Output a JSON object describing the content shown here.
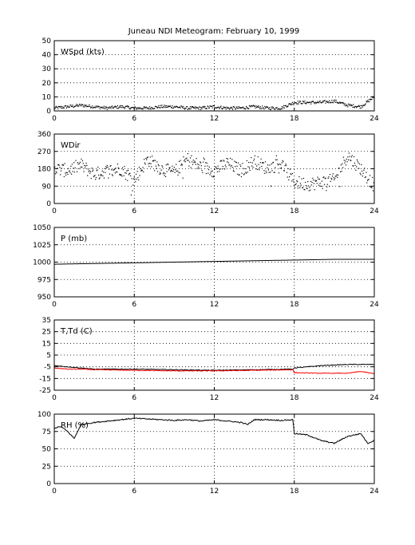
{
  "figure": {
    "title": "Juneau NDI Meteogram:  February 10, 1999"
  },
  "chart_data": [
    {
      "type": "scatter",
      "label": "WSpd (kts)",
      "ylim": [
        0,
        50
      ],
      "yticks": [
        0,
        10,
        20,
        30,
        40,
        50
      ],
      "xlim": [
        0,
        24
      ],
      "xticks": [
        0,
        6,
        12,
        18,
        24
      ],
      "grid": true,
      "series": [
        {
          "x": [
            0,
            1,
            2,
            3,
            4,
            5,
            6,
            7,
            8,
            9,
            10,
            11,
            12,
            13,
            14,
            15,
            16,
            17,
            18,
            19,
            20,
            21,
            22,
            23,
            24
          ],
          "y": [
            2,
            3,
            4,
            3,
            2,
            3,
            2,
            2,
            3,
            3,
            2,
            2,
            3,
            2,
            2,
            3,
            2,
            2,
            6,
            6,
            6,
            7,
            4,
            3,
            10
          ],
          "color": "#000000"
        }
      ]
    },
    {
      "type": "scatter",
      "label": "WDir",
      "ylim": [
        0,
        360
      ],
      "yticks": [
        0,
        90,
        180,
        270,
        360
      ],
      "xlim": [
        0,
        24
      ],
      "xticks": [
        0,
        6,
        12,
        18,
        24
      ],
      "grid": true,
      "series": [
        {
          "x": [
            0,
            1,
            2,
            3,
            4,
            5,
            6,
            7,
            8,
            9,
            10,
            11,
            12,
            13,
            14,
            15,
            16,
            17,
            18,
            19,
            20,
            21,
            22,
            23,
            24
          ],
          "y": [
            180,
            170,
            200,
            150,
            170,
            180,
            120,
            230,
            180,
            160,
            230,
            190,
            170,
            210,
            170,
            220,
            180,
            210,
            110,
            100,
            110,
            120,
            250,
            180,
            90
          ],
          "color": "#000000"
        }
      ]
    },
    {
      "type": "line",
      "label": "P (mb)",
      "ylim": [
        950,
        1050
      ],
      "yticks": [
        950,
        975,
        1000,
        1025,
        1050
      ],
      "xlim": [
        0,
        24
      ],
      "xticks": [
        0,
        6,
        12,
        18,
        24
      ],
      "grid": true,
      "series": [
        {
          "x": [
            0,
            3,
            6,
            9,
            12,
            15,
            18,
            21,
            24
          ],
          "y": [
            997,
            998,
            999,
            1000,
            1001,
            1002,
            1003,
            1004,
            1004
          ],
          "color": "#000000"
        }
      ]
    },
    {
      "type": "line",
      "label": "T,Td (C)",
      "ylim": [
        -25,
        35
      ],
      "yticks": [
        -25,
        -15,
        -5,
        5,
        15,
        25,
        35
      ],
      "xlim": [
        0,
        24
      ],
      "xticks": [
        0,
        6,
        12,
        18,
        24
      ],
      "grid": true,
      "series": [
        {
          "x": [
            0,
            1,
            2,
            3,
            6,
            9,
            12,
            15,
            17.9,
            18,
            20,
            22,
            23,
            24
          ],
          "y": [
            -4,
            -5,
            -6,
            -7,
            -7,
            -7.5,
            -8,
            -7.5,
            -7,
            -6,
            -4,
            -3,
            -3,
            -3
          ],
          "color": "#000000"
        },
        {
          "x": [
            0,
            1,
            2,
            3,
            6,
            9,
            12,
            15,
            17.9,
            18,
            20,
            22,
            23,
            24
          ],
          "y": [
            -6,
            -7,
            -7,
            -7.5,
            -8,
            -8.5,
            -8.5,
            -8,
            -7.5,
            -10,
            -10.5,
            -10.5,
            -9,
            -11
          ],
          "color": "#ff0000"
        }
      ]
    },
    {
      "type": "line",
      "label": "RH (%)",
      "ylim": [
        0,
        100
      ],
      "yticks": [
        0,
        25,
        50,
        75,
        100
      ],
      "xlim": [
        0,
        24
      ],
      "xticks": [
        0,
        6,
        12,
        18,
        24
      ],
      "grid": true,
      "series": [
        {
          "x": [
            0,
            0.5,
            1,
            1.5,
            2,
            3,
            4,
            5,
            6,
            7,
            8,
            9,
            10,
            11,
            12,
            13,
            14,
            14.5,
            15,
            16,
            17,
            17.9,
            18,
            19,
            20,
            21,
            22,
            22.5,
            23,
            23.5,
            24
          ],
          "y": [
            80,
            82,
            75,
            65,
            85,
            88,
            90,
            92,
            94,
            93,
            92,
            91,
            92,
            90,
            92,
            90,
            88,
            85,
            92,
            92,
            91,
            92,
            72,
            70,
            62,
            58,
            68,
            70,
            72,
            58,
            62
          ],
          "color": "#000000"
        }
      ]
    }
  ]
}
